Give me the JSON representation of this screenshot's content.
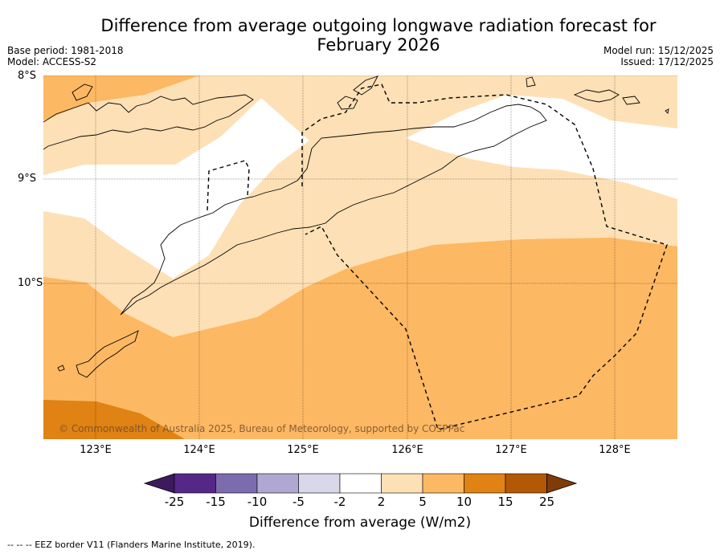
{
  "title_line1": "Difference from average outgoing longwave radiation forecast for",
  "title_line2": "February 2026",
  "base_period": "Base period: 1981-2018",
  "model": "Model: ACCESS-S2",
  "model_run": "Model run: 15/12/2025",
  "issued": "Issued: 17/12/2025",
  "lat_labels": [
    "8°S",
    "9°S",
    "10°S"
  ],
  "lon_labels": [
    "123°E",
    "124°E",
    "125°E",
    "126°E",
    "127°E",
    "128°E"
  ],
  "copyright": "© Commonwealth of Australia 2025, Bureau of Meteorology, supported by COSPPac",
  "colorbar": {
    "ticks": [
      "-25",
      "-15",
      "-10",
      "-5",
      "-2",
      "2",
      "5",
      "10",
      "15",
      "25"
    ],
    "colors": [
      "#3d1a5c",
      "#552888",
      "#7d6cad",
      "#b0a8d3",
      "#d8d8ea",
      "#ffffff",
      "#fee0b6",
      "#fdb863",
      "#e08214",
      "#b35806",
      "#7f3b08"
    ],
    "title": "Difference from average (W/m2)"
  },
  "footnote": "--  --  -- EEZ border V11 (Flanders Marine Institute, 2019)."
}
